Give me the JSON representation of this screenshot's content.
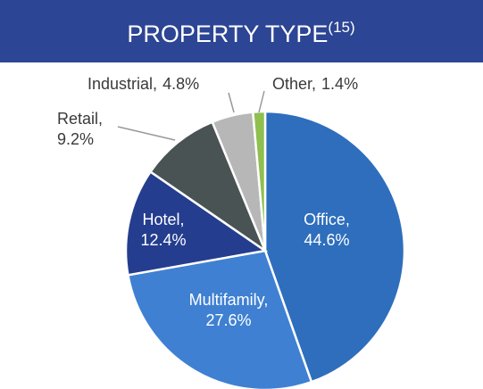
{
  "chart_data": {
    "type": "pie",
    "title": "PROPERTY TYPE",
    "title_note": "(15)",
    "categories": [
      "Office",
      "Multifamily",
      "Hotel",
      "Retail",
      "Industrial",
      "Other"
    ],
    "values": [
      44.6,
      27.6,
      12.4,
      9.2,
      4.8,
      1.4
    ],
    "value_labels": [
      "44.6%",
      "27.6%",
      "12.4%",
      "9.2%",
      "4.8%",
      "1.4%"
    ],
    "colors": [
      "#2e6ebd",
      "#3f80d2",
      "#243d8e",
      "#4a5354",
      "#b7b7b7",
      "#8fbf4f"
    ]
  }
}
